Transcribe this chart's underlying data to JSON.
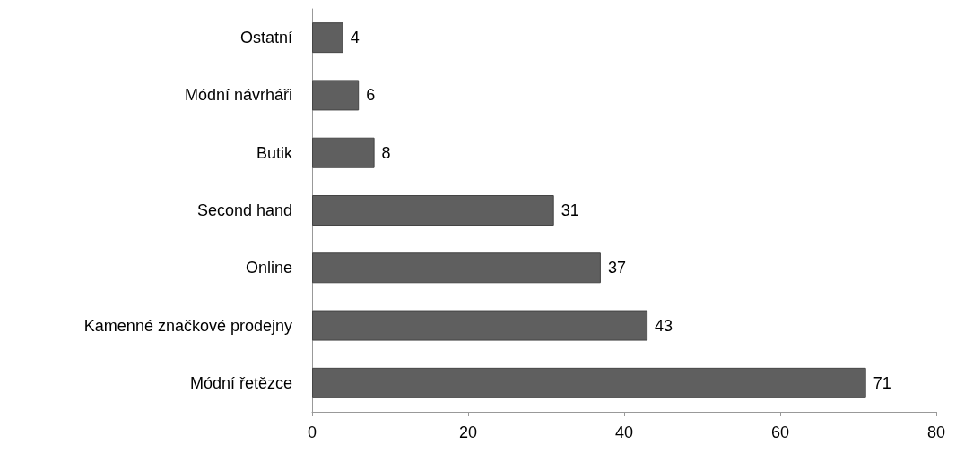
{
  "chart_data": {
    "type": "bar",
    "orientation": "horizontal",
    "categories": [
      "Ostatní",
      "Módní návrháři",
      "Butik",
      "Second hand",
      "Online",
      "Kamenné značkové prodejny",
      "Módní řetězce"
    ],
    "values": [
      4,
      6,
      8,
      31,
      37,
      43,
      71
    ],
    "color": "#5f5f5f",
    "xlim": [
      0,
      80
    ],
    "xticks": [
      0,
      20,
      40,
      60,
      80
    ],
    "data_labels": true
  }
}
